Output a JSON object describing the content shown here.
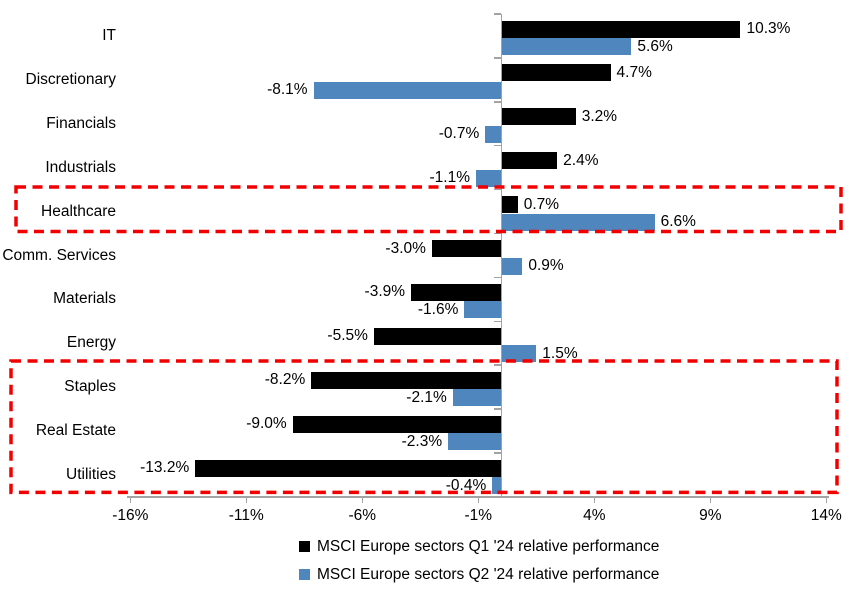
{
  "colors": {
    "series_q1": "#000000",
    "series_q2": "#4F86BD",
    "highlight_red": "#F20000",
    "axis_gray": "#A3A3A3",
    "background": "#FFFFFF",
    "text": "#000000"
  },
  "chart_data": {
    "type": "bar",
    "orientation": "horizontal",
    "title": "",
    "xlabel": "",
    "ylabel": "",
    "grid": false,
    "legend_position": "bottom",
    "categories": [
      "IT",
      "Discretionary",
      "Financials",
      "Industrials",
      "Healthcare",
      "Comm. Services",
      "Materials",
      "Energy",
      "Staples",
      "Real Estate",
      "Utilities"
    ],
    "series": [
      {
        "name": "MSCI Europe sectors Q1 '24 relative performance",
        "color": "#000000",
        "values": [
          10.3,
          4.7,
          3.2,
          2.4,
          0.7,
          -3.0,
          -3.9,
          -5.5,
          -8.2,
          -9.0,
          -13.2
        ]
      },
      {
        "name": "MSCI Europe sectors Q2 '24 relative performance",
        "color": "#4F86BD",
        "values": [
          5.6,
          -8.1,
          -0.7,
          -1.1,
          6.6,
          0.9,
          -1.6,
          1.5,
          -2.1,
          -2.3,
          -0.4
        ]
      }
    ],
    "value_labels": [
      [
        "10.3%",
        "4.7%",
        "3.2%",
        "2.4%",
        "0.7%",
        "-3.0%",
        "-3.9%",
        "-5.5%",
        "-8.2%",
        "-9.0%",
        "-13.2%"
      ],
      [
        "5.6%",
        "-8.1%",
        "-0.7%",
        "-1.1%",
        "6.6%",
        "0.9%",
        "-1.6%",
        "1.5%",
        "-2.1%",
        "-2.3%",
        "-0.4%"
      ]
    ],
    "x_ticks": [
      "-16%",
      "-11%",
      "-6%",
      "-1%",
      "4%",
      "9%",
      "14%"
    ],
    "x_tick_values": [
      -16,
      -11,
      -6,
      -1,
      4,
      9,
      14
    ],
    "xlim": [
      -16,
      14
    ],
    "highlights": [
      {
        "name": "healthcare-highlight-box",
        "label": "Healthcare",
        "from_row": 4,
        "to_row": 4
      },
      {
        "name": "defensives-highlight-box",
        "label": "Staples / Real Estate / Utilities",
        "from_row": 8,
        "to_row": 10
      }
    ]
  }
}
